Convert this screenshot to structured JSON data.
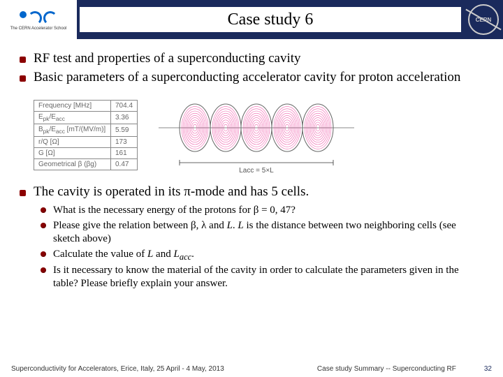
{
  "header": {
    "title": "Case study 6",
    "logo_left_caption": "The CERN Accelerator School",
    "cern_text": "CERN"
  },
  "bullets": {
    "b1": "RF test and properties of a superconducting cavity",
    "b2": "Basic parameters of a superconducting accelerator cavity for proton acceleration",
    "b3": "The cavity is operated in its π-mode and has 5 cells."
  },
  "table": {
    "rows": [
      [
        "Frequency [MHz]",
        "704.4"
      ],
      [
        "E",
        "3.36"
      ],
      [
        "B",
        "5.59"
      ],
      [
        "r/Q [Ω]",
        "173"
      ],
      [
        "G [Ω]",
        "161"
      ],
      [
        "Geometrical β (βg)",
        "0.47"
      ]
    ],
    "r1_label_html": "E<sub>pk</sub>/E<sub>acc</sub>",
    "r2_label_html": "B<sub>pk</sub>/E<sub>acc</sub> [mT/(MV/m)]"
  },
  "cavity": {
    "label": "Lacc = 5×L",
    "cell_count": 5,
    "field_color": "#e91e8c",
    "axis_color": "#888"
  },
  "subbullets": {
    "s1": "What is the necessary energy of the protons for β = 0, 47?",
    "s2_a": "Please give the relation between β, λ and ",
    "s2_b": ". ",
    "s2_c": " is the distance between two neighboring cells (see sketch above)",
    "s3_a": "Calculate the value of  ",
    "s3_b": " and ",
    "s3_c": ".",
    "s4": "Is it necessary to know the material of the cavity in order to calculate the parameters given in the table? Please briefly explain your answer."
  },
  "footer": {
    "left": "Superconductivity for Accelerators, Erice, Italy, 25 April - 4 May, 2013",
    "right": "Case study Summary -- Superconducting RF",
    "page": "32"
  }
}
